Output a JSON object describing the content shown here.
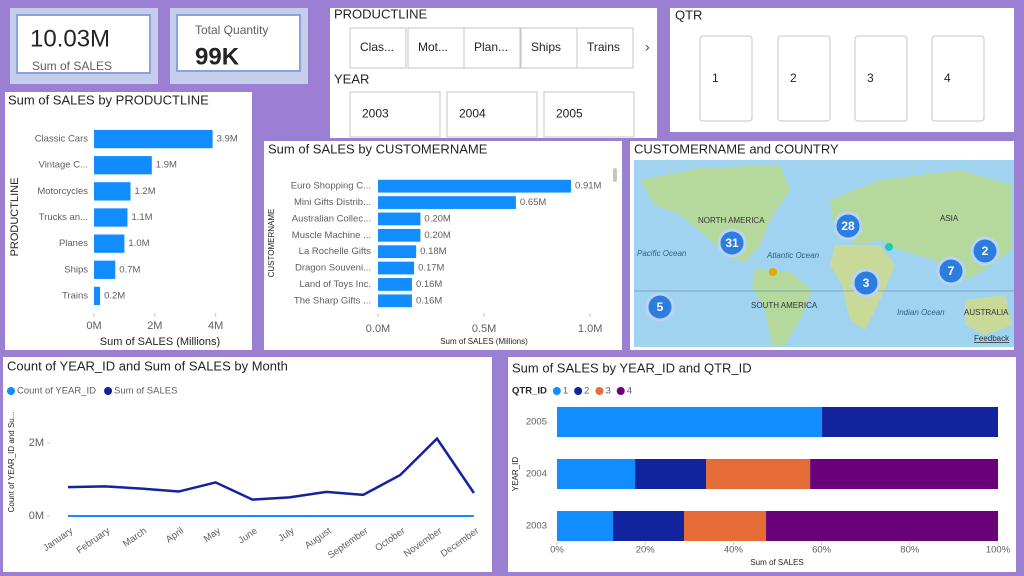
{
  "cards": [
    {
      "value": "10.03M",
      "label": "Sum of SALES"
    },
    {
      "label": "Total Quantity",
      "value": "99K"
    }
  ],
  "slicers": {
    "productline": {
      "title": "PRODUCTLINE",
      "items": [
        "Clas...",
        "Mot...",
        "Plan...",
        "Ships",
        "Trains"
      ]
    },
    "year": {
      "title": "YEAR",
      "items": [
        "2003",
        "2004",
        "2005"
      ]
    },
    "qtr": {
      "title": "QTR",
      "items": [
        "1",
        "2",
        "3",
        "4"
      ]
    }
  },
  "map": {
    "title": "CUSTOMERNAME and COUNTRY",
    "labels": [
      "NORTH AMERICA",
      "Pacific Ocean",
      "Atlantic Ocean",
      "SOUTH AMERICA",
      "ASIA",
      "Indian Ocean",
      "AUSTRALIA"
    ],
    "clusters": [
      31,
      28,
      2,
      7,
      3,
      5
    ],
    "feedback": "Feedback"
  },
  "chart_data": [
    {
      "type": "hbar",
      "title": "Sum of SALES by PRODUCTLINE",
      "categories": [
        "Classic Cars",
        "Vintage C...",
        "Motorcycles",
        "Trucks an...",
        "Planes",
        "Ships",
        "Trains"
      ],
      "values": [
        3.9,
        1.9,
        1.2,
        1.1,
        1.0,
        0.7,
        0.2
      ],
      "value_labels": [
        "3.9M",
        "1.9M",
        "1.2M",
        "1.1M",
        "1.0M",
        "0.7M",
        "0.2M"
      ],
      "color": "#118dff",
      "xlim": [
        0,
        4.8
      ],
      "xticks": [
        {
          "value": 0,
          "label": "0M"
        },
        {
          "value": 2,
          "label": "2M"
        },
        {
          "value": 4,
          "label": "4M"
        }
      ],
      "x_label": "Sum of SALES (Millions)",
      "y_label": "PRODUCTLINE"
    },
    {
      "type": "hbar",
      "title": "Sum of SALES by CUSTOMERNAME",
      "categories": [
        "Euro Shopping C...",
        "Mini Gifts Distrib...",
        "Australian Collec...",
        "Muscle Machine ...",
        "La Rochelle Gifts",
        "Dragon Souveni...",
        "Land of Toys Inc.",
        "The Sharp Gifts ..."
      ],
      "values": [
        0.91,
        0.65,
        0.2,
        0.2,
        0.18,
        0.17,
        0.16,
        0.16
      ],
      "value_labels": [
        "0.91M",
        "0.65M",
        "0.20M",
        "0.20M",
        "0.18M",
        "0.17M",
        "0.16M",
        "0.16M"
      ],
      "color": "#118dff",
      "xlim": [
        0,
        1.07
      ],
      "xticks": [
        {
          "value": 0,
          "label": "0.0M"
        },
        {
          "value": 0.5,
          "label": "0.5M"
        },
        {
          "value": 1,
          "label": "1.0M"
        }
      ],
      "x_label": "Sum of SALES (Millions)",
      "y_label": "CUSTOMERNAME"
    },
    {
      "type": "line",
      "title": "Count of YEAR_ID and Sum of SALES by Month",
      "categories": [
        "January",
        "February",
        "March",
        "April",
        "May",
        "June",
        "July",
        "August",
        "September",
        "October",
        "November",
        "December"
      ],
      "series": [
        {
          "name": "Count of YEAR_ID",
          "color": "#118dff",
          "values": [
            0,
            0,
            0,
            0,
            0,
            0,
            0,
            0,
            0,
            0,
            0,
            0
          ]
        },
        {
          "name": "Sum of SALES",
          "color": "#12239e",
          "values": [
            0.79,
            0.81,
            0.75,
            0.67,
            0.92,
            0.45,
            0.51,
            0.66,
            0.58,
            1.12,
            2.12,
            0.63
          ]
        }
      ],
      "ylim": [
        0,
        2.9
      ],
      "yticks": [
        {
          "value": 0,
          "label": "0M"
        },
        {
          "value": 2,
          "label": "2M"
        }
      ],
      "y_label": "Count of YEAR_ID and Su...",
      "legend": "top-left"
    },
    {
      "type": "stacked100",
      "title": "Sum of SALES by YEAR_ID and QTR_ID",
      "legend_title": "QTR_ID",
      "categories": [
        "2005",
        "2004",
        "2003"
      ],
      "series": [
        {
          "name": "1",
          "color": "#118dff",
          "values": [
            60.1,
            17.7,
            12.7
          ]
        },
        {
          "name": "2",
          "color": "#12239e",
          "values": [
            39.9,
            16.1,
            16.1
          ]
        },
        {
          "name": "3",
          "color": "#e66c37",
          "values": [
            null,
            23.6,
            18.6
          ]
        },
        {
          "name": "4",
          "color": "#6b007b",
          "values": [
            null,
            42.6,
            52.6
          ]
        }
      ],
      "xlim": [
        0,
        100
      ],
      "xticks": [
        {
          "value": 0,
          "label": "0%"
        },
        {
          "value": 20,
          "label": "20%"
        },
        {
          "value": 40,
          "label": "40%"
        },
        {
          "value": 60,
          "label": "60%"
        },
        {
          "value": 80,
          "label": "80%"
        },
        {
          "value": 100,
          "label": "100%"
        }
      ],
      "x_label": "Sum of SALES",
      "y_label": "YEAR_ID",
      "legend": "top-left"
    }
  ]
}
